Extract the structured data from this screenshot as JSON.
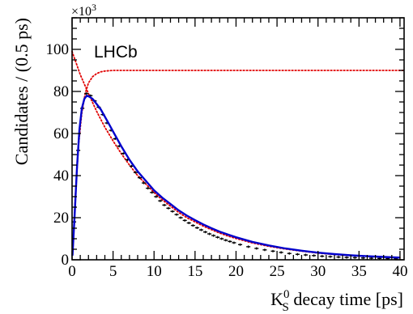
{
  "chart_data": {
    "type": "line",
    "title": "",
    "collaboration_label": "LHCb",
    "xlabel_prefix": "K",
    "xlabel_sup": "0",
    "xlabel_sub": "S",
    "xlabel_suffix": " decay time [ps]",
    "ylabel": "Candidates / (0.5 ps)",
    "y_exponent_base": "×10",
    "y_exponent_power": "3",
    "xlim": [
      0,
      40.5
    ],
    "ylim": [
      0,
      115
    ],
    "x_ticks": [
      0,
      5,
      10,
      15,
      20,
      25,
      30,
      35,
      40
    ],
    "y_ticks": [
      0,
      20,
      40,
      60,
      80,
      100
    ],
    "grid": false,
    "series": [
      {
        "kind": "data-points",
        "color": "#000000",
        "bin_width": 0.5,
        "x": [
          0.25,
          0.75,
          1.25,
          1.75,
          2.25,
          2.75,
          3.25,
          3.75,
          4.25,
          4.75,
          5.25,
          5.75,
          6.25,
          6.75,
          7.25,
          7.75,
          8.25,
          8.75,
          9.25,
          9.75,
          10.25,
          10.75,
          11.25,
          11.75,
          12.25,
          12.75,
          13.25,
          13.75,
          14.25,
          14.75,
          15.25,
          15.75,
          16.25,
          16.75,
          17.25,
          17.75,
          18.25,
          18.75,
          19.25,
          19.75,
          20.5,
          21.5,
          22.5,
          23.5,
          24.5,
          25.5,
          26.5,
          27.5,
          28.5,
          29.5,
          30.5,
          31.5,
          32.5,
          33.5,
          34.5,
          35.5,
          36.5,
          37.5,
          38.5,
          39.5
        ],
        "y": [
          18,
          52,
          72,
          79,
          78,
          75.5,
          72.5,
          69,
          65,
          61.5,
          57.5,
          54,
          50.5,
          47.5,
          44.5,
          41.5,
          39,
          36.5,
          34,
          32,
          30,
          28,
          26,
          24.5,
          23,
          21.5,
          20,
          18.7,
          17.5,
          16.3,
          15.2,
          14.2,
          13.2,
          12.3,
          11.5,
          10.7,
          10,
          9.3,
          8.7,
          8.1,
          7.2,
          6.2,
          5.4,
          4.7,
          4.1,
          3.5,
          3.0,
          2.6,
          2.3,
          2.0,
          1.7,
          1.5,
          1.3,
          1.1,
          1.0,
          0.85,
          0.75,
          0.65,
          0.55,
          0.5
        ]
      },
      {
        "kind": "fit",
        "color": "#0000cc",
        "style": "solid",
        "x": [
          0.05,
          0.3,
          0.6,
          0.9,
          1.2,
          1.5,
          1.8,
          2.1,
          2.5,
          3,
          3.5,
          4,
          4.5,
          5,
          6,
          7,
          8,
          9,
          10,
          11,
          12,
          13,
          14,
          15,
          16,
          17,
          18,
          19,
          20,
          22,
          24,
          26,
          28,
          30,
          32,
          34,
          36,
          38,
          40
        ],
        "y": [
          2,
          20,
          44,
          62,
          72,
          76.5,
          78,
          77.5,
          76.5,
          74,
          71.5,
          68,
          64.5,
          61,
          54,
          47.5,
          42,
          37.5,
          33,
          29.5,
          26.5,
          23.5,
          21,
          18.8,
          16.8,
          15,
          13.4,
          12,
          10.7,
          8.5,
          6.8,
          5.4,
          4.3,
          3.4,
          2.7,
          2.1,
          1.7,
          1.35,
          1.05
        ]
      },
      {
        "kind": "decay-exponential",
        "color": "#e00000",
        "style": "dotted",
        "x": [
          0,
          1,
          2,
          3,
          4,
          5,
          6,
          7,
          8,
          9,
          10,
          11,
          12,
          13,
          14,
          15,
          16,
          17,
          18,
          19,
          20,
          22,
          24,
          26,
          28,
          30,
          32,
          34,
          36,
          38,
          40
        ],
        "y": [
          99,
          88,
          79,
          70.5,
          63,
          56.5,
          50.5,
          45,
          40,
          36,
          32,
          28.5,
          25.5,
          22.5,
          20,
          18,
          16,
          14.3,
          12.7,
          11.3,
          10.1,
          8,
          6.4,
          5.1,
          4.1,
          3.2,
          2.5,
          2,
          1.6,
          1.3,
          1.0
        ]
      },
      {
        "kind": "efficiency",
        "color": "#e00000",
        "style": "dotted",
        "x": [
          0.1,
          0.4,
          0.8,
          1.2,
          1.6,
          2,
          2.5,
          3,
          3.5,
          4,
          5,
          6,
          8,
          10,
          20,
          30,
          40.5
        ],
        "y": [
          5,
          30,
          55,
          70,
          79,
          84,
          87,
          88.5,
          89.3,
          89.7,
          90,
          90,
          90,
          90,
          90,
          90,
          90
        ]
      }
    ]
  }
}
